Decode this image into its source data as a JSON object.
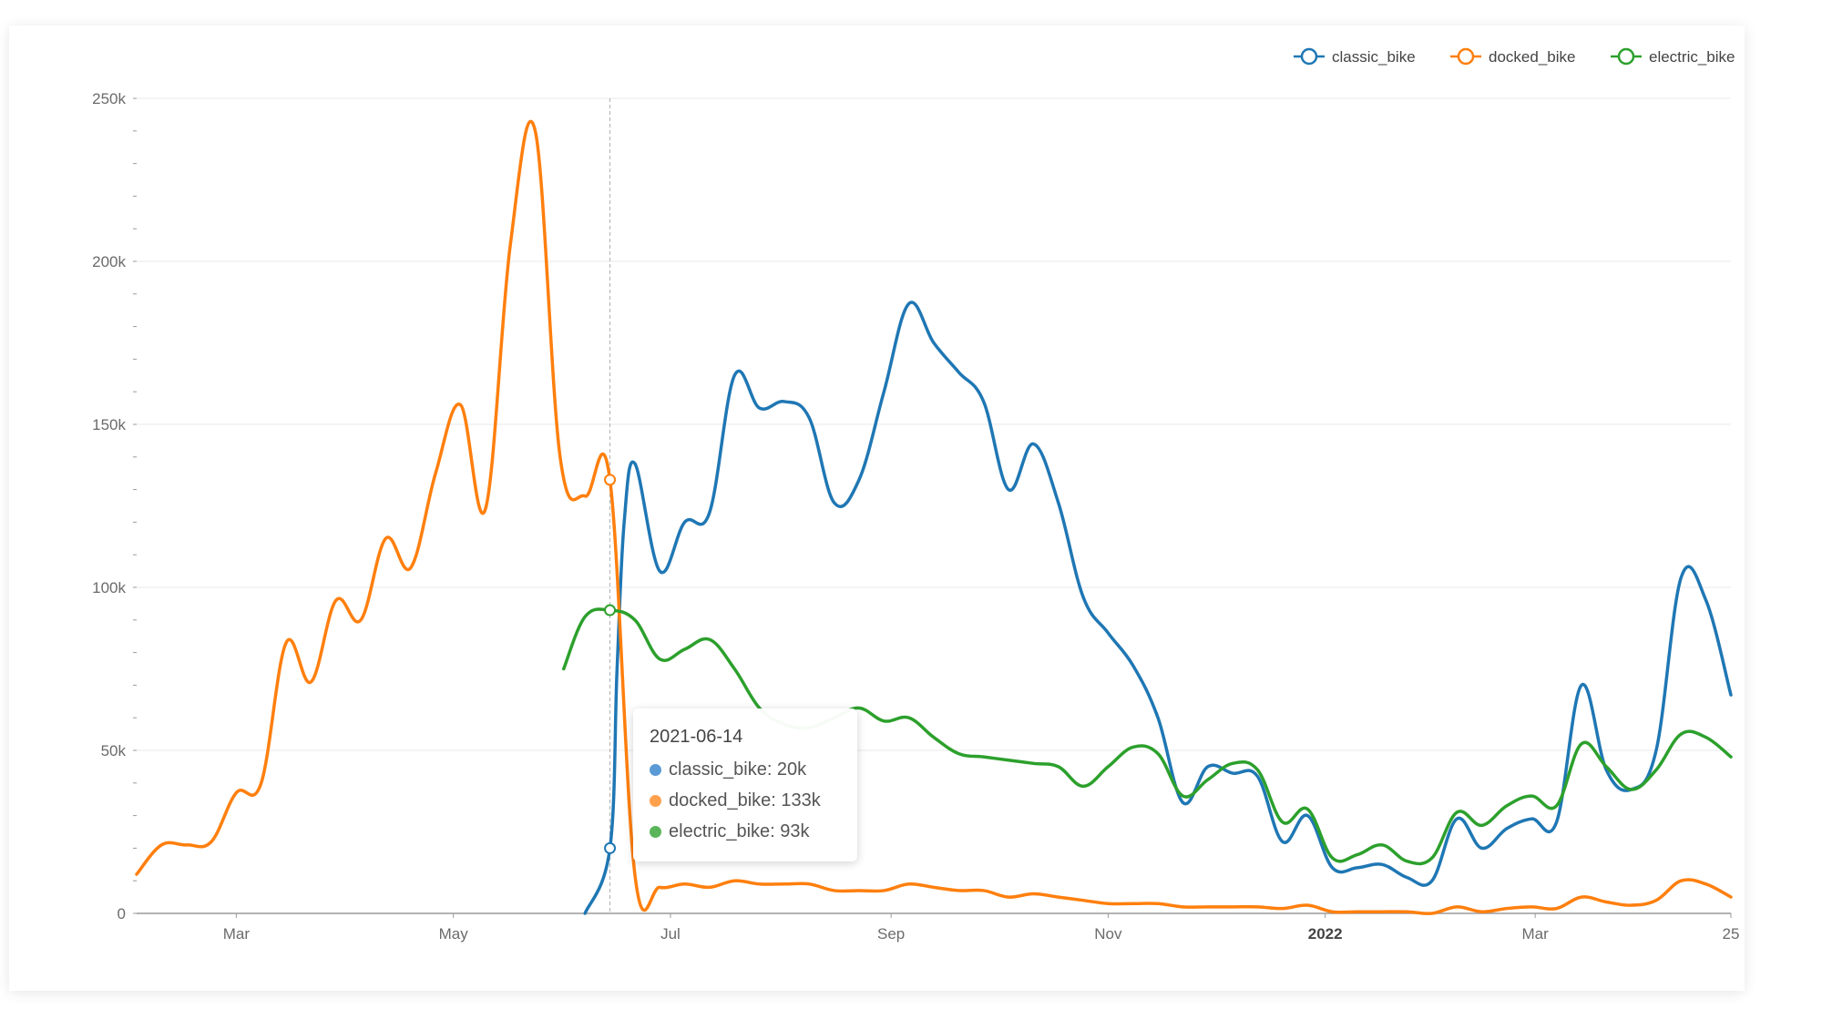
{
  "legend": [
    {
      "name": "classic_bike",
      "color": "#1f77b4"
    },
    {
      "name": "docked_bike",
      "color": "#ff7f0e"
    },
    {
      "name": "electric_bike",
      "color": "#2ca02c"
    }
  ],
  "tooltip": {
    "date": "2021-06-14",
    "rows": [
      {
        "label": "classic_bike: 20k",
        "color": "#5b9bd5"
      },
      {
        "label": "docked_bike: 133k",
        "color": "#ffa04d"
      },
      {
        "label": "electric_bike: 93k",
        "color": "#5ab55a"
      }
    ]
  },
  "chart_data": {
    "type": "line",
    "x_axis": {
      "type": "date",
      "range": [
        "2021-02-01",
        "2022-04-25"
      ],
      "tick_labels": [
        {
          "date": "2021-03-01",
          "label": "Mar"
        },
        {
          "date": "2021-05-01",
          "label": "May"
        },
        {
          "date": "2021-07-01",
          "label": "Jul"
        },
        {
          "date": "2021-09-01",
          "label": "Sep"
        },
        {
          "date": "2021-11-01",
          "label": "Nov"
        },
        {
          "date": "2022-01-01",
          "label": "2022",
          "bold": true
        },
        {
          "date": "2022-03-01",
          "label": "Mar"
        },
        {
          "date": "2022-04-25",
          "label": "25"
        }
      ]
    },
    "y_axis": {
      "range": [
        0,
        250000
      ],
      "tick_values": [
        0,
        50000,
        100000,
        150000,
        200000,
        250000
      ],
      "tick_labels": [
        "0",
        "50k",
        "100k",
        "150k",
        "200k",
        "250k"
      ]
    },
    "grid": true,
    "legend_position": "top-right",
    "hover_date": "2021-06-14",
    "series": [
      {
        "name": "classic_bike",
        "color": "#1f77b4",
        "points": [
          [
            "2021-06-07",
            0
          ],
          [
            "2021-06-14",
            20000
          ],
          [
            "2021-06-16",
            75000
          ],
          [
            "2021-06-18",
            120000
          ],
          [
            "2021-06-21",
            138000
          ],
          [
            "2021-06-28",
            105000
          ],
          [
            "2021-07-05",
            120000
          ],
          [
            "2021-07-12",
            123000
          ],
          [
            "2021-07-19",
            165000
          ],
          [
            "2021-07-26",
            155000
          ],
          [
            "2021-08-02",
            157000
          ],
          [
            "2021-08-09",
            152000
          ],
          [
            "2021-08-16",
            126000
          ],
          [
            "2021-08-23",
            133000
          ],
          [
            "2021-08-30",
            160000
          ],
          [
            "2021-09-06",
            187000
          ],
          [
            "2021-09-13",
            175000
          ],
          [
            "2021-09-20",
            166000
          ],
          [
            "2021-09-27",
            157000
          ],
          [
            "2021-10-04",
            130000
          ],
          [
            "2021-10-11",
            144000
          ],
          [
            "2021-10-18",
            126000
          ],
          [
            "2021-10-25",
            97000
          ],
          [
            "2021-11-01",
            86000
          ],
          [
            "2021-11-08",
            76000
          ],
          [
            "2021-11-15",
            60000
          ],
          [
            "2021-11-22",
            34000
          ],
          [
            "2021-11-29",
            45000
          ],
          [
            "2021-12-06",
            43000
          ],
          [
            "2021-12-13",
            42000
          ],
          [
            "2021-12-20",
            22000
          ],
          [
            "2021-12-27",
            30000
          ],
          [
            "2022-01-03",
            14000
          ],
          [
            "2022-01-10",
            14000
          ],
          [
            "2022-01-17",
            15000
          ],
          [
            "2022-01-24",
            11000
          ],
          [
            "2022-01-31",
            10000
          ],
          [
            "2022-02-07",
            29000
          ],
          [
            "2022-02-14",
            20000
          ],
          [
            "2022-02-21",
            26000
          ],
          [
            "2022-02-28",
            29000
          ],
          [
            "2022-03-07",
            28000
          ],
          [
            "2022-03-14",
            70000
          ],
          [
            "2022-03-21",
            44000
          ],
          [
            "2022-03-28",
            38000
          ],
          [
            "2022-04-04",
            50000
          ],
          [
            "2022-04-11",
            103000
          ],
          [
            "2022-04-18",
            96000
          ],
          [
            "2022-04-25",
            67000
          ]
        ]
      },
      {
        "name": "docked_bike",
        "color": "#ff7f0e",
        "points": [
          [
            "2021-02-01",
            12000
          ],
          [
            "2021-02-08",
            21000
          ],
          [
            "2021-02-15",
            21000
          ],
          [
            "2021-02-22",
            22000
          ],
          [
            "2021-03-01",
            37000
          ],
          [
            "2021-03-08",
            40000
          ],
          [
            "2021-03-15",
            83000
          ],
          [
            "2021-03-22",
            71000
          ],
          [
            "2021-03-29",
            96000
          ],
          [
            "2021-04-05",
            90000
          ],
          [
            "2021-04-12",
            115000
          ],
          [
            "2021-04-19",
            106000
          ],
          [
            "2021-04-26",
            135000
          ],
          [
            "2021-05-03",
            156000
          ],
          [
            "2021-05-10",
            124000
          ],
          [
            "2021-05-17",
            205000
          ],
          [
            "2021-05-24",
            240000
          ],
          [
            "2021-05-31",
            140000
          ],
          [
            "2021-06-07",
            128000
          ],
          [
            "2021-06-14",
            133000
          ],
          [
            "2021-06-21",
            12000
          ],
          [
            "2021-06-28",
            8000
          ],
          [
            "2021-07-05",
            9000
          ],
          [
            "2021-07-12",
            8000
          ],
          [
            "2021-07-19",
            10000
          ],
          [
            "2021-07-26",
            9000
          ],
          [
            "2021-08-02",
            9000
          ],
          [
            "2021-08-09",
            9000
          ],
          [
            "2021-08-16",
            7000
          ],
          [
            "2021-08-23",
            7000
          ],
          [
            "2021-08-30",
            7000
          ],
          [
            "2021-09-06",
            9000
          ],
          [
            "2021-09-13",
            8000
          ],
          [
            "2021-09-20",
            7000
          ],
          [
            "2021-09-27",
            7000
          ],
          [
            "2021-10-04",
            5000
          ],
          [
            "2021-10-11",
            6000
          ],
          [
            "2021-10-18",
            5000
          ],
          [
            "2021-10-25",
            4000
          ],
          [
            "2021-11-01",
            3000
          ],
          [
            "2021-11-08",
            3000
          ],
          [
            "2021-11-15",
            3000
          ],
          [
            "2021-11-22",
            2000
          ],
          [
            "2021-11-29",
            2000
          ],
          [
            "2021-12-06",
            2000
          ],
          [
            "2021-12-13",
            2000
          ],
          [
            "2021-12-20",
            1500
          ],
          [
            "2021-12-27",
            2500
          ],
          [
            "2022-01-03",
            500
          ],
          [
            "2022-01-10",
            500
          ],
          [
            "2022-01-17",
            500
          ],
          [
            "2022-01-24",
            500
          ],
          [
            "2022-01-31",
            0
          ],
          [
            "2022-02-07",
            2000
          ],
          [
            "2022-02-14",
            500
          ],
          [
            "2022-02-21",
            1500
          ],
          [
            "2022-02-28",
            2000
          ],
          [
            "2022-03-07",
            1500
          ],
          [
            "2022-03-14",
            5000
          ],
          [
            "2022-03-21",
            3500
          ],
          [
            "2022-03-28",
            2500
          ],
          [
            "2022-04-04",
            4000
          ],
          [
            "2022-04-11",
            10000
          ],
          [
            "2022-04-18",
            9000
          ],
          [
            "2022-04-25",
            5000
          ]
        ]
      },
      {
        "name": "electric_bike",
        "color": "#2ca02c",
        "points": [
          [
            "2021-06-01",
            75000
          ],
          [
            "2021-06-07",
            91000
          ],
          [
            "2021-06-14",
            93000
          ],
          [
            "2021-06-21",
            90000
          ],
          [
            "2021-06-28",
            78000
          ],
          [
            "2021-07-05",
            81000
          ],
          [
            "2021-07-12",
            84000
          ],
          [
            "2021-07-19",
            75000
          ],
          [
            "2021-07-26",
            63000
          ],
          [
            "2021-08-02",
            58000
          ],
          [
            "2021-08-09",
            57000
          ],
          [
            "2021-08-16",
            60000
          ],
          [
            "2021-08-23",
            63000
          ],
          [
            "2021-08-30",
            59000
          ],
          [
            "2021-09-06",
            60000
          ],
          [
            "2021-09-13",
            54000
          ],
          [
            "2021-09-20",
            49000
          ],
          [
            "2021-09-27",
            48000
          ],
          [
            "2021-10-04",
            47000
          ],
          [
            "2021-10-11",
            46000
          ],
          [
            "2021-10-18",
            45000
          ],
          [
            "2021-10-25",
            39000
          ],
          [
            "2021-11-01",
            45000
          ],
          [
            "2021-11-08",
            51000
          ],
          [
            "2021-11-15",
            49000
          ],
          [
            "2021-11-22",
            36000
          ],
          [
            "2021-11-29",
            41000
          ],
          [
            "2021-12-06",
            46000
          ],
          [
            "2021-12-13",
            44000
          ],
          [
            "2021-12-20",
            28000
          ],
          [
            "2021-12-27",
            32000
          ],
          [
            "2022-01-03",
            17000
          ],
          [
            "2022-01-10",
            18000
          ],
          [
            "2022-01-17",
            21000
          ],
          [
            "2022-01-24",
            16000
          ],
          [
            "2022-01-31",
            17000
          ],
          [
            "2022-02-07",
            31000
          ],
          [
            "2022-02-14",
            27000
          ],
          [
            "2022-02-21",
            33000
          ],
          [
            "2022-02-28",
            36000
          ],
          [
            "2022-03-07",
            33000
          ],
          [
            "2022-03-14",
            52000
          ],
          [
            "2022-03-21",
            45000
          ],
          [
            "2022-03-28",
            38000
          ],
          [
            "2022-04-04",
            44000
          ],
          [
            "2022-04-11",
            55000
          ],
          [
            "2022-04-18",
            54000
          ],
          [
            "2022-04-25",
            48000
          ]
        ]
      }
    ]
  }
}
